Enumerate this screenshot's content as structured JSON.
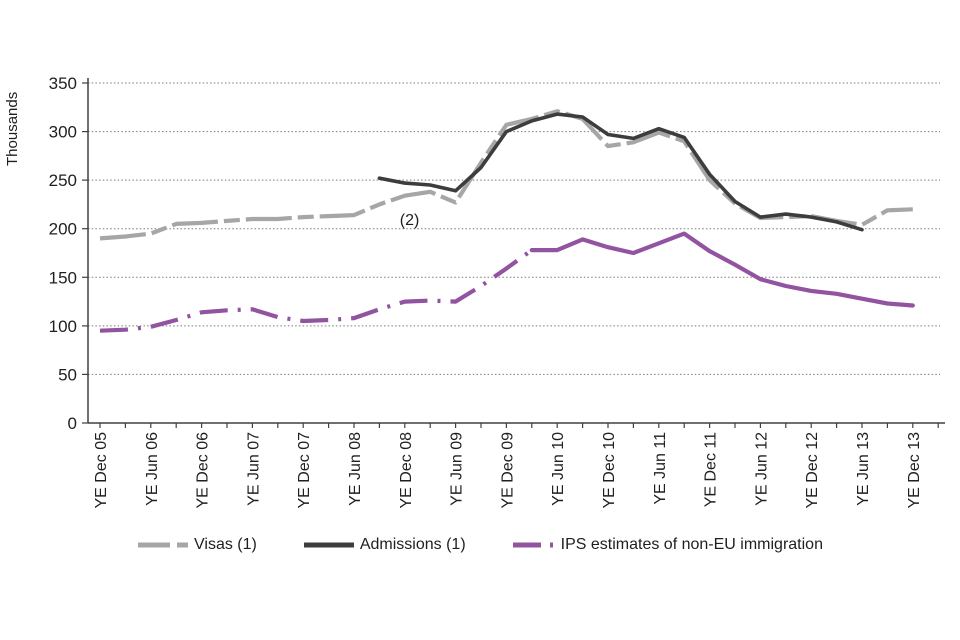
{
  "chart_data": {
    "type": "line",
    "title": "",
    "ylabel": "Thousands",
    "ylim": [
      0,
      350
    ],
    "ytick_step": 50,
    "grid": "dotted horizontal gridlines at every 50",
    "legend_position": "bottom",
    "x_tick_labels": [
      "YE Dec 05",
      "YE Jun 06",
      "YE Dec 06",
      "YE Jun 07",
      "YE Dec 07",
      "YE Jun 08",
      "YE Dec 08",
      "YE Jun 09",
      "YE Dec 09",
      "YE Jun 10",
      "YE Dec 10",
      "YE Jun 11",
      "YE Dec 11",
      "YE Jun 12",
      "YE Dec 12",
      "YE Jun 13",
      "YE Dec 13"
    ],
    "minor_ticks_per_label_interval": 2,
    "x_resolution": "quarterly, labels shown every second quarter",
    "annotations": [
      {
        "text": "(2)",
        "attached_to": "Admissions (1) series start area",
        "x_index": 12,
        "value": 204
      }
    ],
    "series": [
      {
        "name": "Visas (1)",
        "color": "#a6a6a6",
        "line_style": "long-dash",
        "width": 4.2,
        "start_quarter_index": 0,
        "values": [
          190,
          192,
          195,
          205,
          206,
          208,
          210,
          210,
          212,
          213,
          214,
          225,
          234,
          238,
          227,
          268,
          307,
          313,
          321,
          313,
          285,
          289,
          299,
          290,
          250,
          226,
          211,
          212,
          213,
          208,
          204,
          219,
          220
        ]
      },
      {
        "name": "Admissions (1)",
        "color": "#3d3d3d",
        "line_style": "solid",
        "width": 3.6,
        "start_quarter_index": 11,
        "values": [
          252,
          247,
          245,
          239,
          263,
          300,
          311,
          318,
          315,
          297,
          293,
          303,
          294,
          256,
          228,
          212,
          215,
          212,
          207,
          199
        ]
      },
      {
        "name": "IPS estimates of non-EU immigration",
        "color": "#9253a0",
        "line_style": "dash-dot",
        "solid_from_index": 17,
        "width": 4.2,
        "start_quarter_index": 0,
        "values": [
          95,
          96,
          99,
          106,
          114,
          116,
          117,
          109,
          105,
          106,
          108,
          117,
          125,
          126,
          125,
          141,
          159,
          178,
          178,
          189,
          181,
          175,
          185,
          195,
          177,
          163,
          148,
          141,
          136,
          133,
          128,
          123,
          121
        ]
      }
    ],
    "colors": {
      "axis": "#404040",
      "gridline": "#7a7a7a",
      "text": "#1f1f1f"
    }
  }
}
